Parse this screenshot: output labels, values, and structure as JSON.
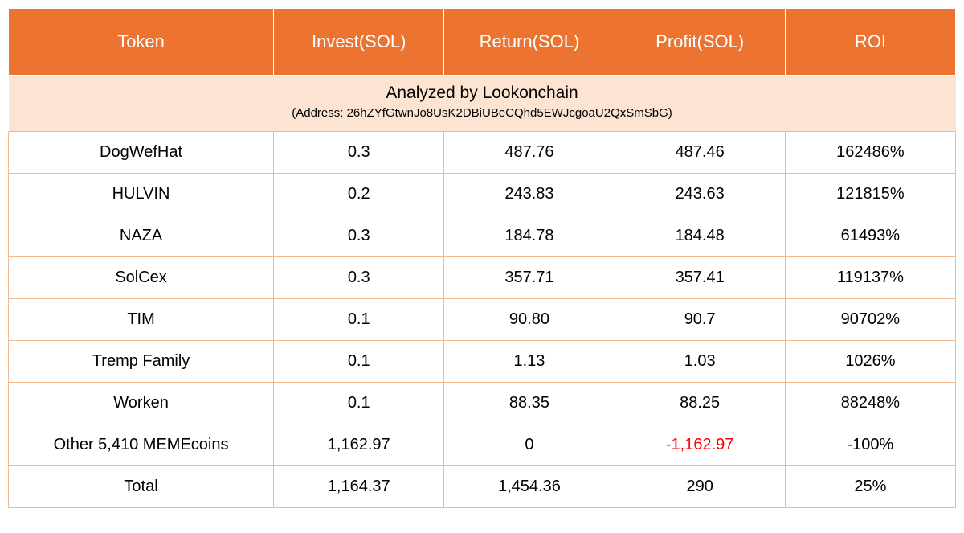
{
  "styling": {
    "header_bg": "#ec7430",
    "header_text": "#ffffff",
    "info_bg": "#fce3d2",
    "border_color": "#f2b98f",
    "body_text": "#000000",
    "negative_text": "#ff0000",
    "header_fontsize": 22,
    "body_fontsize": 20,
    "info_title_fontsize": 21,
    "info_sub_fontsize": 15
  },
  "columns": [
    {
      "label": "Token"
    },
    {
      "label": "Invest(SOL)"
    },
    {
      "label": "Return(SOL)"
    },
    {
      "label": "Profit(SOL)"
    },
    {
      "label": "ROI"
    }
  ],
  "info": {
    "title": "Analyzed by Lookonchain",
    "address_label": "(Address: 26hZYfGtwnJo8UsK2DBiUBeCQhd5EWJcgoaU2QxSmSbG)"
  },
  "rows": [
    {
      "token": "DogWefHat",
      "invest": "0.3",
      "return": "487.76",
      "profit": "487.46",
      "roi": "162486%",
      "neg": false
    },
    {
      "token": "HULVIN",
      "invest": "0.2",
      "return": "243.83",
      "profit": "243.63",
      "roi": "121815%",
      "neg": false
    },
    {
      "token": "NAZA",
      "invest": "0.3",
      "return": "184.78",
      "profit": "184.48",
      "roi": "61493%",
      "neg": false
    },
    {
      "token": "SolCex",
      "invest": "0.3",
      "return": "357.71",
      "profit": "357.41",
      "roi": "119137%",
      "neg": false
    },
    {
      "token": "TIM",
      "invest": "0.1",
      "return": "90.80",
      "profit": "90.7",
      "roi": "90702%",
      "neg": false
    },
    {
      "token": "Tremp Family",
      "invest": "0.1",
      "return": "1.13",
      "profit": "1.03",
      "roi": "1026%",
      "neg": false
    },
    {
      "token": "Worken",
      "invest": "0.1",
      "return": "88.35",
      "profit": "88.25",
      "roi": "88248%",
      "neg": false
    },
    {
      "token": "Other 5,410 MEMEcoins",
      "invest": "1,162.97",
      "return": "0",
      "profit": "-1,162.97",
      "roi": "-100%",
      "neg": true
    },
    {
      "token": "Total",
      "invest": "1,164.37",
      "return": "1,454.36",
      "profit": "290",
      "roi": "25%",
      "neg": false
    }
  ]
}
